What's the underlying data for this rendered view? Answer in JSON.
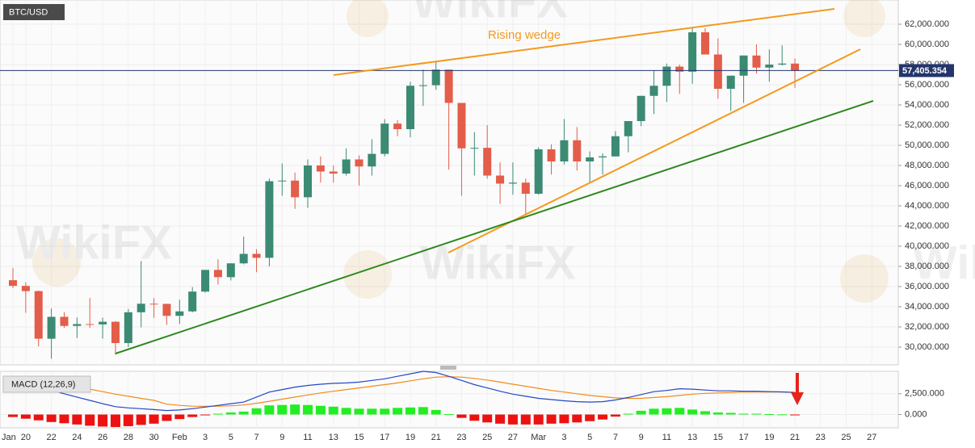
{
  "chart_data": {
    "type": "candlestick",
    "title": "BTC/USD",
    "annotation": "Rising wedge",
    "watermark": "WikiFX",
    "up_color": "#3b8a74",
    "down_color": "#e35d4a",
    "grid": true,
    "categories": [
      "Jan",
      "20",
      null,
      "22",
      null,
      "24",
      null,
      "26",
      null,
      "28",
      null,
      "30",
      null,
      "Feb",
      null,
      "3",
      null,
      "5",
      null,
      "7",
      null,
      "9",
      null,
      "11",
      null,
      "13",
      null,
      "15",
      null,
      "17",
      null,
      "19",
      null,
      "21",
      null,
      "23",
      null,
      "25",
      null,
      "27",
      null,
      "Mar",
      null,
      "3",
      null,
      "5",
      null,
      "7",
      null,
      "9",
      null,
      "11",
      null,
      "13",
      null,
      "15",
      null,
      "17",
      null,
      "19",
      null,
      "21",
      null,
      "23",
      null,
      "25",
      null,
      "27"
    ],
    "open": [
      36630,
      36070,
      35550,
      30830,
      33000,
      32100,
      32280,
      32250,
      32510,
      30400,
      33450,
      34300,
      34280,
      33100,
      33540,
      35500,
      37650,
      36930,
      38300,
      39240,
      38850,
      46440,
      46500,
      44850,
      48000,
      47400,
      47200,
      48600,
      47900,
      49150,
      52150,
      51600,
      55900,
      55950,
      57500,
      54200,
      49700,
      49750,
      47000,
      46200,
      46300,
      45200,
      49600,
      48400,
      50500,
      48400,
      48800,
      48900,
      50900,
      52400,
      54900,
      55900,
      57800,
      57300,
      61200,
      59000,
      55600,
      56900,
      58900,
      57700,
      58000,
      58100,
      null,
      null,
      null,
      null,
      null,
      null
    ],
    "high": [
      37850,
      36420,
      35600,
      33830,
      33460,
      32940,
      34870,
      32920,
      32560,
      33780,
      38530,
      34860,
      34300,
      34700,
      35950,
      37660,
      38700,
      38300,
      40950,
      39700,
      46700,
      48200,
      47300,
      48600,
      48900,
      48000,
      49700,
      49000,
      50600,
      52600,
      52500,
      56300,
      57500,
      58300,
      57500,
      54200,
      51300,
      52000,
      48300,
      48300,
      46700,
      49800,
      50100,
      52600,
      51800,
      49400,
      49200,
      51400,
      52400,
      54900,
      57400,
      58100,
      58000,
      61700,
      61600,
      60600,
      56900,
      58900,
      60000,
      59500,
      59900,
      58600,
      null,
      null,
      null,
      null,
      null,
      null
    ],
    "low": [
      35850,
      33400,
      30070,
      28850,
      31900,
      30900,
      31900,
      30850,
      29240,
      30000,
      31950,
      32900,
      32200,
      32300,
      33440,
      35400,
      36200,
      36600,
      38200,
      37420,
      38000,
      45000,
      43700,
      43800,
      46300,
      46300,
      47000,
      46000,
      47000,
      48900,
      50900,
      50800,
      53900,
      55500,
      47600,
      45000,
      47000,
      46700,
      44200,
      45100,
      43100,
      45100,
      47100,
      48100,
      47500,
      46300,
      47100,
      48900,
      49300,
      51900,
      53100,
      54300,
      55100,
      56100,
      59000,
      54600,
      53400,
      54200,
      57100,
      56300,
      57900,
      55700,
      null,
      null,
      null,
      null,
      null,
      null
    ],
    "close": [
      36070,
      35550,
      30830,
      33000,
      32100,
      32280,
      32250,
      32510,
      30400,
      33450,
      34300,
      34280,
      33100,
      33540,
      35500,
      37650,
      36930,
      38300,
      39240,
      38850,
      46440,
      46500,
      44850,
      48000,
      47400,
      47200,
      48600,
      47900,
      49150,
      52150,
      51600,
      55900,
      55950,
      57500,
      54200,
      49700,
      49750,
      47000,
      46200,
      46300,
      45200,
      49600,
      48400,
      50500,
      48400,
      48800,
      48900,
      50900,
      52400,
      54900,
      55900,
      57800,
      57300,
      61200,
      59000,
      55600,
      56900,
      58900,
      57700,
      58000,
      58100,
      57405.354,
      null,
      null,
      null,
      null,
      null,
      null
    ],
    "ylim": [
      28240,
      64400
    ],
    "yticks": [
      {
        "value": 30000,
        "label": "30,000.000"
      },
      {
        "value": 32000,
        "label": "32,000.000"
      },
      {
        "value": 34000,
        "label": "34,000.000"
      },
      {
        "value": 36000,
        "label": "36,000.000"
      },
      {
        "value": 38000,
        "label": "38,000.000"
      },
      {
        "value": 40000,
        "label": "40,000.000"
      },
      {
        "value": 42000,
        "label": "42,000.000"
      },
      {
        "value": 44000,
        "label": "44,000.000"
      },
      {
        "value": 46000,
        "label": "46,000.000"
      },
      {
        "value": 48000,
        "label": "48,000.000"
      },
      {
        "value": 50000,
        "label": "50,000.000"
      },
      {
        "value": 52000,
        "label": "52,000.000"
      },
      {
        "value": 54000,
        "label": "54,000.000"
      },
      {
        "value": 56000,
        "label": "56,000.000"
      },
      {
        "value": 58000,
        "label": "58,000.000"
      },
      {
        "value": 60000,
        "label": "60,000.000"
      },
      {
        "value": 62000,
        "label": "62,000.000"
      }
    ],
    "last_price": {
      "value": 57405.354,
      "label": "57,405.354"
    },
    "last_price_color": "#23356b",
    "macd": {
      "title": "MACD (12,26,9)",
      "macd_color": "#2447c8",
      "signal_color": "#f28a1a",
      "histogram_up_color": "#22ee22",
      "histogram_down_color": "#ee1111",
      "macd_values": [
        4000,
        3700,
        3300,
        2900,
        2500,
        2100,
        1700,
        1300,
        950,
        800,
        700,
        600,
        480,
        550,
        700,
        900,
        1100,
        1300,
        1500,
        2100,
        2700,
        3000,
        3300,
        3500,
        3650,
        3750,
        3800,
        3900,
        4100,
        4300,
        4600,
        4900,
        5200,
        5050,
        4600,
        4100,
        3600,
        3200,
        2800,
        2450,
        2200,
        1950,
        1800,
        1650,
        1550,
        1500,
        1550,
        1750,
        2050,
        2400,
        2750,
        2900,
        3100,
        3050,
        2950,
        2850,
        2850,
        2800,
        2800,
        2750,
        2720,
        2650,
        null,
        null,
        null,
        null,
        null,
        null
      ],
      "signal_values": [
        4300,
        4200,
        4000,
        3800,
        3550,
        3300,
        3050,
        2750,
        2450,
        2200,
        1950,
        1700,
        1250,
        1100,
        1000,
        980,
        1000,
        1050,
        1150,
        1350,
        1600,
        1850,
        2100,
        2350,
        2600,
        2800,
        3000,
        3200,
        3400,
        3600,
        3800,
        4050,
        4300,
        4500,
        4550,
        4500,
        4350,
        4150,
        3900,
        3650,
        3400,
        3150,
        2900,
        2700,
        2500,
        2300,
        2150,
        2000,
        1950,
        1950,
        2050,
        2150,
        2300,
        2450,
        2550,
        2600,
        2650,
        2700,
        2700,
        2700,
        2700,
        2680,
        null,
        null,
        null,
        null,
        null,
        null
      ],
      "histogram_values": [
        -300,
        -500,
        -700,
        -900,
        -1050,
        -1200,
        -1350,
        -1450,
        -1500,
        -1400,
        -1250,
        -1100,
        -770,
        -550,
        -300,
        -80,
        100,
        250,
        350,
        750,
        1100,
        1150,
        1200,
        1150,
        1050,
        950,
        800,
        700,
        700,
        700,
        800,
        850,
        900,
        550,
        50,
        -400,
        -750,
        -950,
        -1100,
        -1200,
        -1200,
        -1200,
        -1100,
        -1050,
        -950,
        -800,
        -600,
        -250,
        100,
        450,
        700,
        750,
        800,
        600,
        400,
        250,
        200,
        100,
        100,
        50,
        20,
        -30,
        null,
        null,
        null,
        null,
        null,
        null
      ],
      "ylim": [
        -1600,
        5200
      ],
      "yticks": [
        {
          "value": 0,
          "label": "0.000"
        },
        {
          "value": 2500,
          "label": "2,500.000"
        }
      ]
    }
  }
}
